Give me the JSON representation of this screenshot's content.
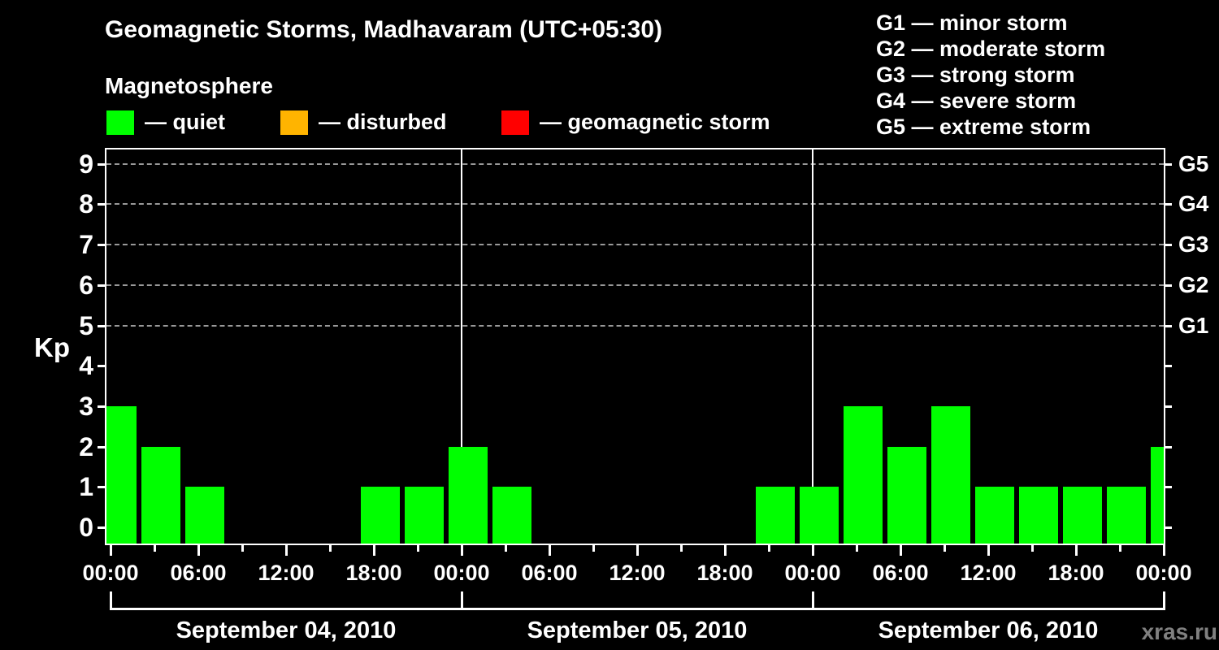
{
  "header": {
    "title": "Geomagnetic Storms, Madhavaram (UTC+05:30)"
  },
  "g_scale_legend": {
    "items": [
      "G1 — minor storm",
      "G2 — moderate storm",
      "G3 — strong storm",
      "G4 — severe storm",
      "G5 — extreme storm"
    ]
  },
  "legend": {
    "heading": "Magnetosphere",
    "items": [
      {
        "label": "— quiet",
        "color": "#00FF00"
      },
      {
        "label": "— disturbed",
        "color": "#FFB400"
      },
      {
        "label": "— geomagnetic storm",
        "color": "#FF0000"
      }
    ]
  },
  "watermark": "xras.ru",
  "colors": {
    "background": "#000000",
    "text": "#FFFFFF",
    "axis": "#FFFFFF",
    "gridline": "#999999",
    "quiet": "#00FF00",
    "disturbed": "#FFB400",
    "storm": "#FF0000",
    "watermark": "#808080"
  },
  "chart_data": {
    "type": "bar",
    "title": "Geomagnetic Storms, Madhavaram (UTC+05:30)",
    "xlabel": "",
    "ylabel": "Kp",
    "ylim": [
      0,
      9
    ],
    "y_ticks": [
      0,
      1,
      2,
      3,
      4,
      5,
      6,
      7,
      8,
      9
    ],
    "grid": "dashed horizontal lines at Kp 5,6,7,8,9 (G1..G5); solid white vertical lines at day boundaries",
    "legend_position": "top",
    "right_axis": {
      "g_labels": [
        "G1",
        "G2",
        "G3",
        "G4",
        "G5"
      ],
      "at_kp": [
        5,
        6,
        7,
        8,
        9
      ]
    },
    "x_hours_total": 72,
    "x_tick_interval_hours": 3,
    "x_major_tick_interval_hours": 6,
    "x_major_labels": [
      "00:00",
      "06:00",
      "12:00",
      "18:00",
      "00:00",
      "06:00",
      "12:00",
      "18:00",
      "00:00",
      "06:00",
      "12:00",
      "18:00",
      "00:00"
    ],
    "days": [
      "September 04, 2010",
      "September 05, 2010",
      "September 06, 2010"
    ],
    "bars": {
      "slot_hours": 3,
      "first_slot_start_hour": -1.2,
      "kp_values": [
        3,
        2,
        1,
        0,
        0,
        0,
        1,
        1,
        2,
        1,
        0,
        0,
        0,
        0,
        0,
        1,
        1,
        3,
        2,
        3,
        1,
        1,
        1,
        1,
        2
      ],
      "color_rules": {
        "quiet_max_kp": 3,
        "disturbed_kp": 4,
        "storm_min_kp": 5
      }
    }
  }
}
